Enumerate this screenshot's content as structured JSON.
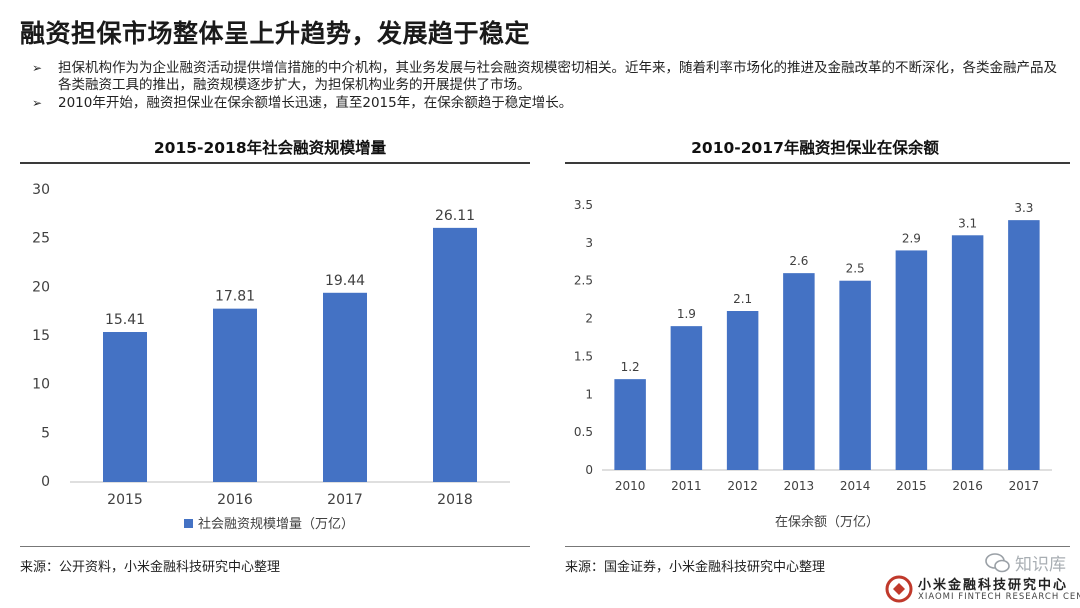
{
  "page": {
    "title": "融资担保市场整体呈上升趋势，发展趋于稳定",
    "bullets": [
      "担保机构作为为企业融资活动提供增信措施的中介机构，其业务发展与社会融资规模密切相关。近年来，随着利率市场化的推进及金融改革的不断深化，各类金融产品及各类融资工具的推出，融资规模逐步扩大，为担保机构业务的开展提供了市场。",
      "2010年开始，融资担保业在保余额增长迅速，直至2015年，在保余额趋于稳定增长。"
    ],
    "bullet_marker": "➢",
    "left_source": "来源：公开资料，小米金融科技研究中心整理",
    "right_source": "来源：国金证券，小米金融科技研究中心整理",
    "logo_text": "小米金融科技研究中心",
    "logo_sub": "XIAOMI FINTECH RESEARCH CENTER",
    "watermark_text": "知识库"
  },
  "colors": {
    "bar": "#4472c4",
    "axis": "#bfbfbf",
    "text": "#404040"
  },
  "chart_data": [
    {
      "type": "bar",
      "title": "2015-2018年社会融资规模增量",
      "categories": [
        "2015",
        "2016",
        "2017",
        "2018"
      ],
      "values": [
        15.41,
        17.81,
        19.44,
        26.11
      ],
      "value_labels": [
        "15.41",
        "17.81",
        "19.44",
        "26.11"
      ],
      "ylim": [
        0,
        30
      ],
      "yticks": [
        "0",
        "5",
        "10",
        "15",
        "20",
        "25",
        "30"
      ],
      "legend": "社会融资规模增量（万亿）",
      "legend_position": "bottom-left",
      "xlabel": "",
      "ylabel": "",
      "grid": false
    },
    {
      "type": "bar",
      "title": "2010-2017年融资担保业在保余额",
      "categories": [
        "2010",
        "2011",
        "2012",
        "2013",
        "2014",
        "2015",
        "2016",
        "2017"
      ],
      "values": [
        1.2,
        1.9,
        2.1,
        2.6,
        2.5,
        2.9,
        3.1,
        3.3
      ],
      "value_labels": [
        "1.2",
        "1.9",
        "2.1",
        "2.6",
        "2.5",
        "2.9",
        "3.1",
        "3.3"
      ],
      "ylim": [
        0,
        3.5
      ],
      "yticks": [
        "0",
        "0.5",
        "1",
        "1.5",
        "2",
        "2.5",
        "3",
        "3.5"
      ],
      "xlabel": "在保余额（万亿）",
      "ylabel": "",
      "grid": false
    }
  ]
}
